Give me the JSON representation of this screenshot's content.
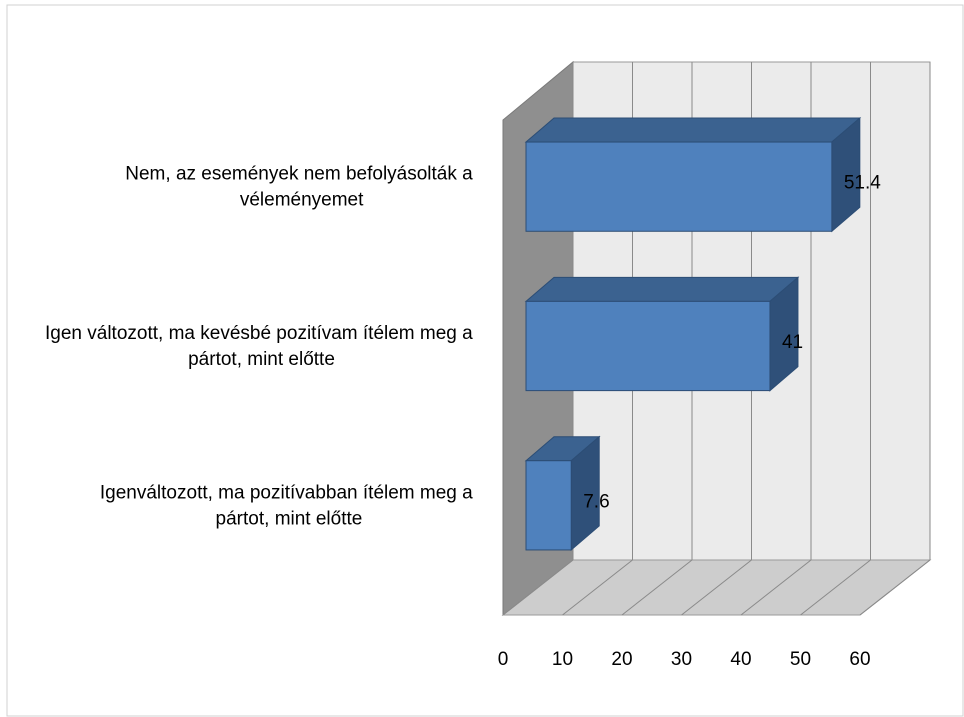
{
  "chart_data": {
    "type": "bar3d",
    "categories": [
      "Nem, az események nem befolyásolták a véleményemet",
      "Igen változott, ma kevésbé pozitívam ítélem meg a pártot, mint előtte",
      "Igenváltozott, ma pozitívabban ítélem meg a pártot, mint előtte"
    ],
    "values": [
      51.4,
      41,
      7.6
    ],
    "color": "#4f81bd",
    "xlim": [
      0,
      60
    ],
    "xticks": [
      0,
      10,
      20,
      30,
      40,
      50,
      60
    ],
    "grid": true
  }
}
